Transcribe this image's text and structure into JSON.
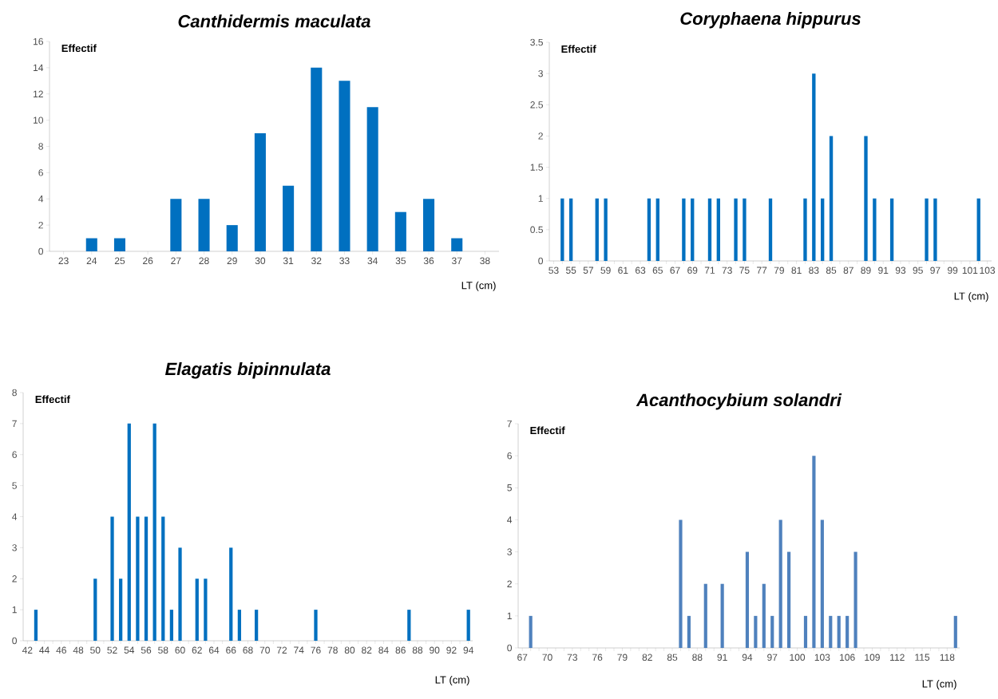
{
  "chart_data": [
    {
      "type": "bar",
      "title": "Canthidermis maculata",
      "ylabel": "Effectif",
      "xlabel": "LT (cm)",
      "color": "#0070c0",
      "categories": [
        "23",
        "24",
        "25",
        "26",
        "27",
        "28",
        "29",
        "30",
        "31",
        "32",
        "33",
        "34",
        "35",
        "36",
        "37",
        "38"
      ],
      "values": [
        0,
        1,
        1,
        0,
        4,
        4,
        2,
        9,
        5,
        14,
        13,
        11,
        3,
        4,
        1,
        0
      ],
      "ylim": [
        0,
        16
      ],
      "yticks": [
        0,
        2,
        4,
        6,
        8,
        10,
        12,
        14,
        16
      ]
    },
    {
      "type": "bar",
      "title": "Coryphaena hippurus",
      "ylabel": "Effectif",
      "xlabel": "LT (cm)",
      "color": "#0070c0",
      "categories": [
        "53",
        null,
        "55",
        null,
        "57",
        null,
        "59",
        null,
        "61",
        null,
        "63",
        null,
        "65",
        null,
        "67",
        null,
        "69",
        null,
        "71",
        null,
        "73",
        null,
        "75",
        null,
        "77",
        null,
        "79",
        null,
        "81",
        null,
        "83",
        null,
        "85",
        null,
        "87",
        null,
        "89",
        null,
        "91",
        null,
        "93",
        null,
        "95",
        null,
        "97",
        null,
        "99",
        null,
        "101",
        null,
        "103"
      ],
      "values": [
        0,
        1,
        1,
        0,
        0,
        1,
        1,
        0,
        0,
        0,
        0,
        1,
        1,
        0,
        0,
        1,
        1,
        0,
        1,
        1,
        0,
        1,
        1,
        0,
        0,
        1,
        0,
        0,
        0,
        1,
        3,
        1,
        2,
        0,
        0,
        0,
        2,
        1,
        0,
        1,
        0,
        0,
        0,
        1,
        1,
        0,
        0,
        0,
        0,
        1,
        0
      ],
      "ylim": [
        0,
        3.5
      ],
      "yticks": [
        0,
        0.5,
        1,
        1.5,
        2,
        2.5,
        3,
        3.5
      ]
    },
    {
      "type": "bar",
      "title": "Elagatis bipinnulata",
      "ylabel": "Effectif",
      "xlabel": "LT (cm)",
      "color": "#0070c0",
      "categories": [
        "42",
        null,
        "44",
        null,
        "46",
        null,
        "48",
        null,
        "50",
        null,
        "52",
        null,
        "54",
        null,
        "56",
        null,
        "58",
        null,
        "60",
        null,
        "62",
        null,
        "64",
        null,
        "66",
        null,
        "68",
        null,
        "70",
        null,
        "72",
        null,
        "74",
        null,
        "76",
        null,
        "78",
        null,
        "80",
        null,
        "82",
        null,
        "84",
        null,
        "86",
        null,
        "88",
        null,
        "90",
        null,
        "92",
        null,
        "94"
      ],
      "values": [
        0,
        1,
        0,
        0,
        0,
        0,
        0,
        0,
        2,
        0,
        4,
        2,
        7,
        4,
        4,
        7,
        4,
        1,
        3,
        0,
        2,
        2,
        0,
        0,
        3,
        1,
        0,
        1,
        0,
        0,
        0,
        0,
        0,
        0,
        1,
        0,
        0,
        0,
        0,
        0,
        0,
        0,
        0,
        0,
        0,
        1,
        0,
        0,
        0,
        0,
        0,
        0,
        1
      ],
      "ylim": [
        0,
        8
      ],
      "yticks": [
        0,
        1,
        2,
        3,
        4,
        5,
        6,
        7,
        8
      ]
    },
    {
      "type": "bar",
      "title": "Acanthocybium solandri",
      "ylabel": "Effectif",
      "xlabel": "LT (cm)",
      "color": "#4f81bd",
      "categories": [
        "67",
        null,
        null,
        "70",
        null,
        null,
        "73",
        null,
        null,
        "76",
        null,
        null,
        "79",
        null,
        null,
        "82",
        null,
        null,
        "85",
        null,
        null,
        "88",
        null,
        null,
        "91",
        null,
        null,
        "94",
        null,
        null,
        "97",
        null,
        null,
        "100",
        null,
        null,
        "103",
        null,
        null,
        "106",
        null,
        null,
        "109",
        null,
        null,
        "112",
        null,
        null,
        "115",
        null,
        null,
        "118",
        null
      ],
      "values": [
        0,
        1,
        0,
        0,
        0,
        0,
        0,
        0,
        0,
        0,
        0,
        0,
        0,
        0,
        0,
        0,
        0,
        0,
        0,
        4,
        1,
        0,
        2,
        0,
        2,
        0,
        0,
        3,
        1,
        2,
        1,
        4,
        3,
        0,
        1,
        6,
        4,
        1,
        1,
        1,
        3,
        0,
        0,
        0,
        0,
        0,
        0,
        0,
        0,
        0,
        0,
        0,
        1
      ],
      "ylim": [
        0,
        7
      ],
      "yticks": [
        0,
        1,
        2,
        3,
        4,
        5,
        6,
        7
      ]
    }
  ]
}
